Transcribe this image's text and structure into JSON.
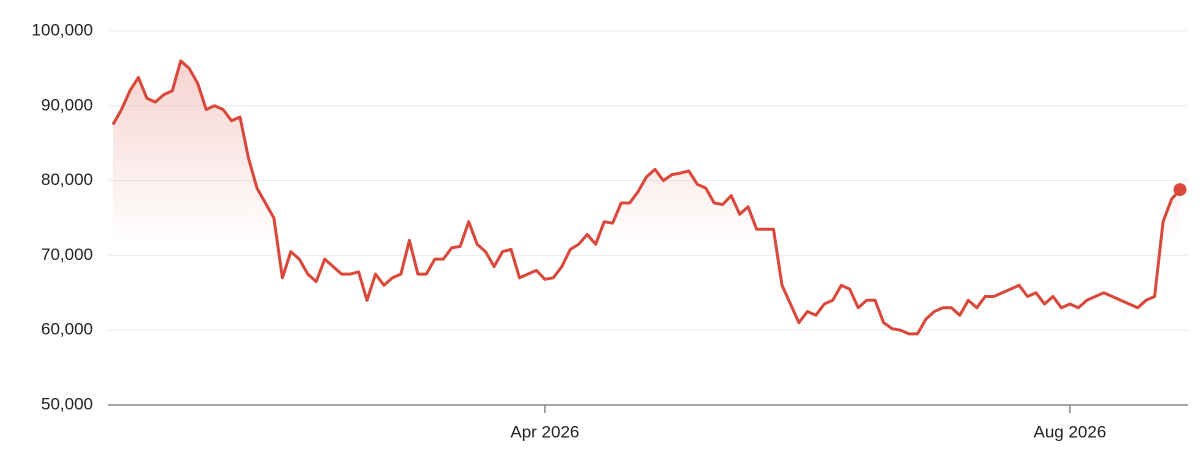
{
  "chart_data": {
    "type": "line",
    "color": "#d9493b",
    "grid": true,
    "categories": [
      null,
      null,
      null,
      null,
      null,
      null,
      null,
      null,
      null,
      null,
      null,
      null,
      null,
      null,
      null,
      null,
      null,
      null,
      null,
      null,
      null,
      null,
      null,
      null,
      null,
      null,
      null,
      null,
      null,
      null,
      null,
      null,
      null,
      null,
      null,
      null,
      null,
      null,
      null,
      null,
      null,
      null,
      null,
      null,
      null,
      null,
      null,
      null,
      null,
      null,
      null,
      "Apr 2026",
      null,
      null,
      null,
      null,
      null,
      null,
      null,
      null,
      null,
      null,
      null,
      null,
      null,
      null,
      null,
      null,
      null,
      null,
      null,
      null,
      null,
      null,
      null,
      null,
      null,
      null,
      null,
      null,
      null,
      null,
      null,
      null,
      null,
      null,
      null,
      null,
      null,
      null,
      null,
      null,
      null,
      null,
      null,
      null,
      null,
      null,
      null,
      null,
      null,
      null,
      null,
      null,
      null,
      null,
      null,
      null,
      null,
      null,
      null,
      null,
      null,
      "Aug 2026",
      null,
      null,
      null,
      null,
      null,
      null,
      null,
      null,
      null,
      null,
      null,
      null,
      null
    ],
    "values": [
      87500,
      89500,
      92000,
      93800,
      91000,
      90500,
      91500,
      92000,
      96000,
      95000,
      93000,
      89500,
      90000,
      89500,
      88000,
      88500,
      83000,
      79000,
      77000,
      75000,
      67000,
      70500,
      69500,
      67500,
      66500,
      69500,
      68500,
      67500,
      67500,
      67800,
      64000,
      67500,
      66000,
      67000,
      67500,
      72000,
      67500,
      67500,
      69500,
      69500,
      71000,
      71200,
      74500,
      71500,
      70500,
      68500,
      70500,
      70800,
      67000,
      67500,
      68000,
      66800,
      67000,
      68500,
      70800,
      71500,
      72800,
      71500,
      74500,
      74300,
      77000,
      77000,
      78500,
      80500,
      81500,
      80000,
      80800,
      81000,
      81300,
      79500,
      79000,
      77000,
      76800,
      78000,
      75500,
      76500,
      73500,
      73500,
      73500,
      66000,
      63500,
      61000,
      62500,
      62000,
      63500,
      64000,
      66000,
      65500,
      63000,
      64000,
      64000,
      61000,
      60200,
      60000,
      59500,
      59500,
      61500,
      62500,
      63000,
      63000,
      62000,
      64000,
      63000,
      64500,
      64500,
      65000,
      65500,
      66000,
      64500,
      65000,
      63500,
      64500,
      63000,
      63500,
      63000,
      64000,
      64500,
      65000,
      64500,
      64000,
      63500,
      63000,
      64000,
      64500,
      74500,
      77500,
      78800
    ],
    "ylim": [
      50000,
      100000
    ],
    "yticks": [
      {
        "value": 50000,
        "label": "50,000"
      },
      {
        "value": 60000,
        "label": "60,000"
      },
      {
        "value": 70000,
        "label": "70,000"
      },
      {
        "value": 80000,
        "label": "80,000"
      },
      {
        "value": 90000,
        "label": "90,000"
      },
      {
        "value": 100000,
        "label": "100,000"
      }
    ]
  }
}
